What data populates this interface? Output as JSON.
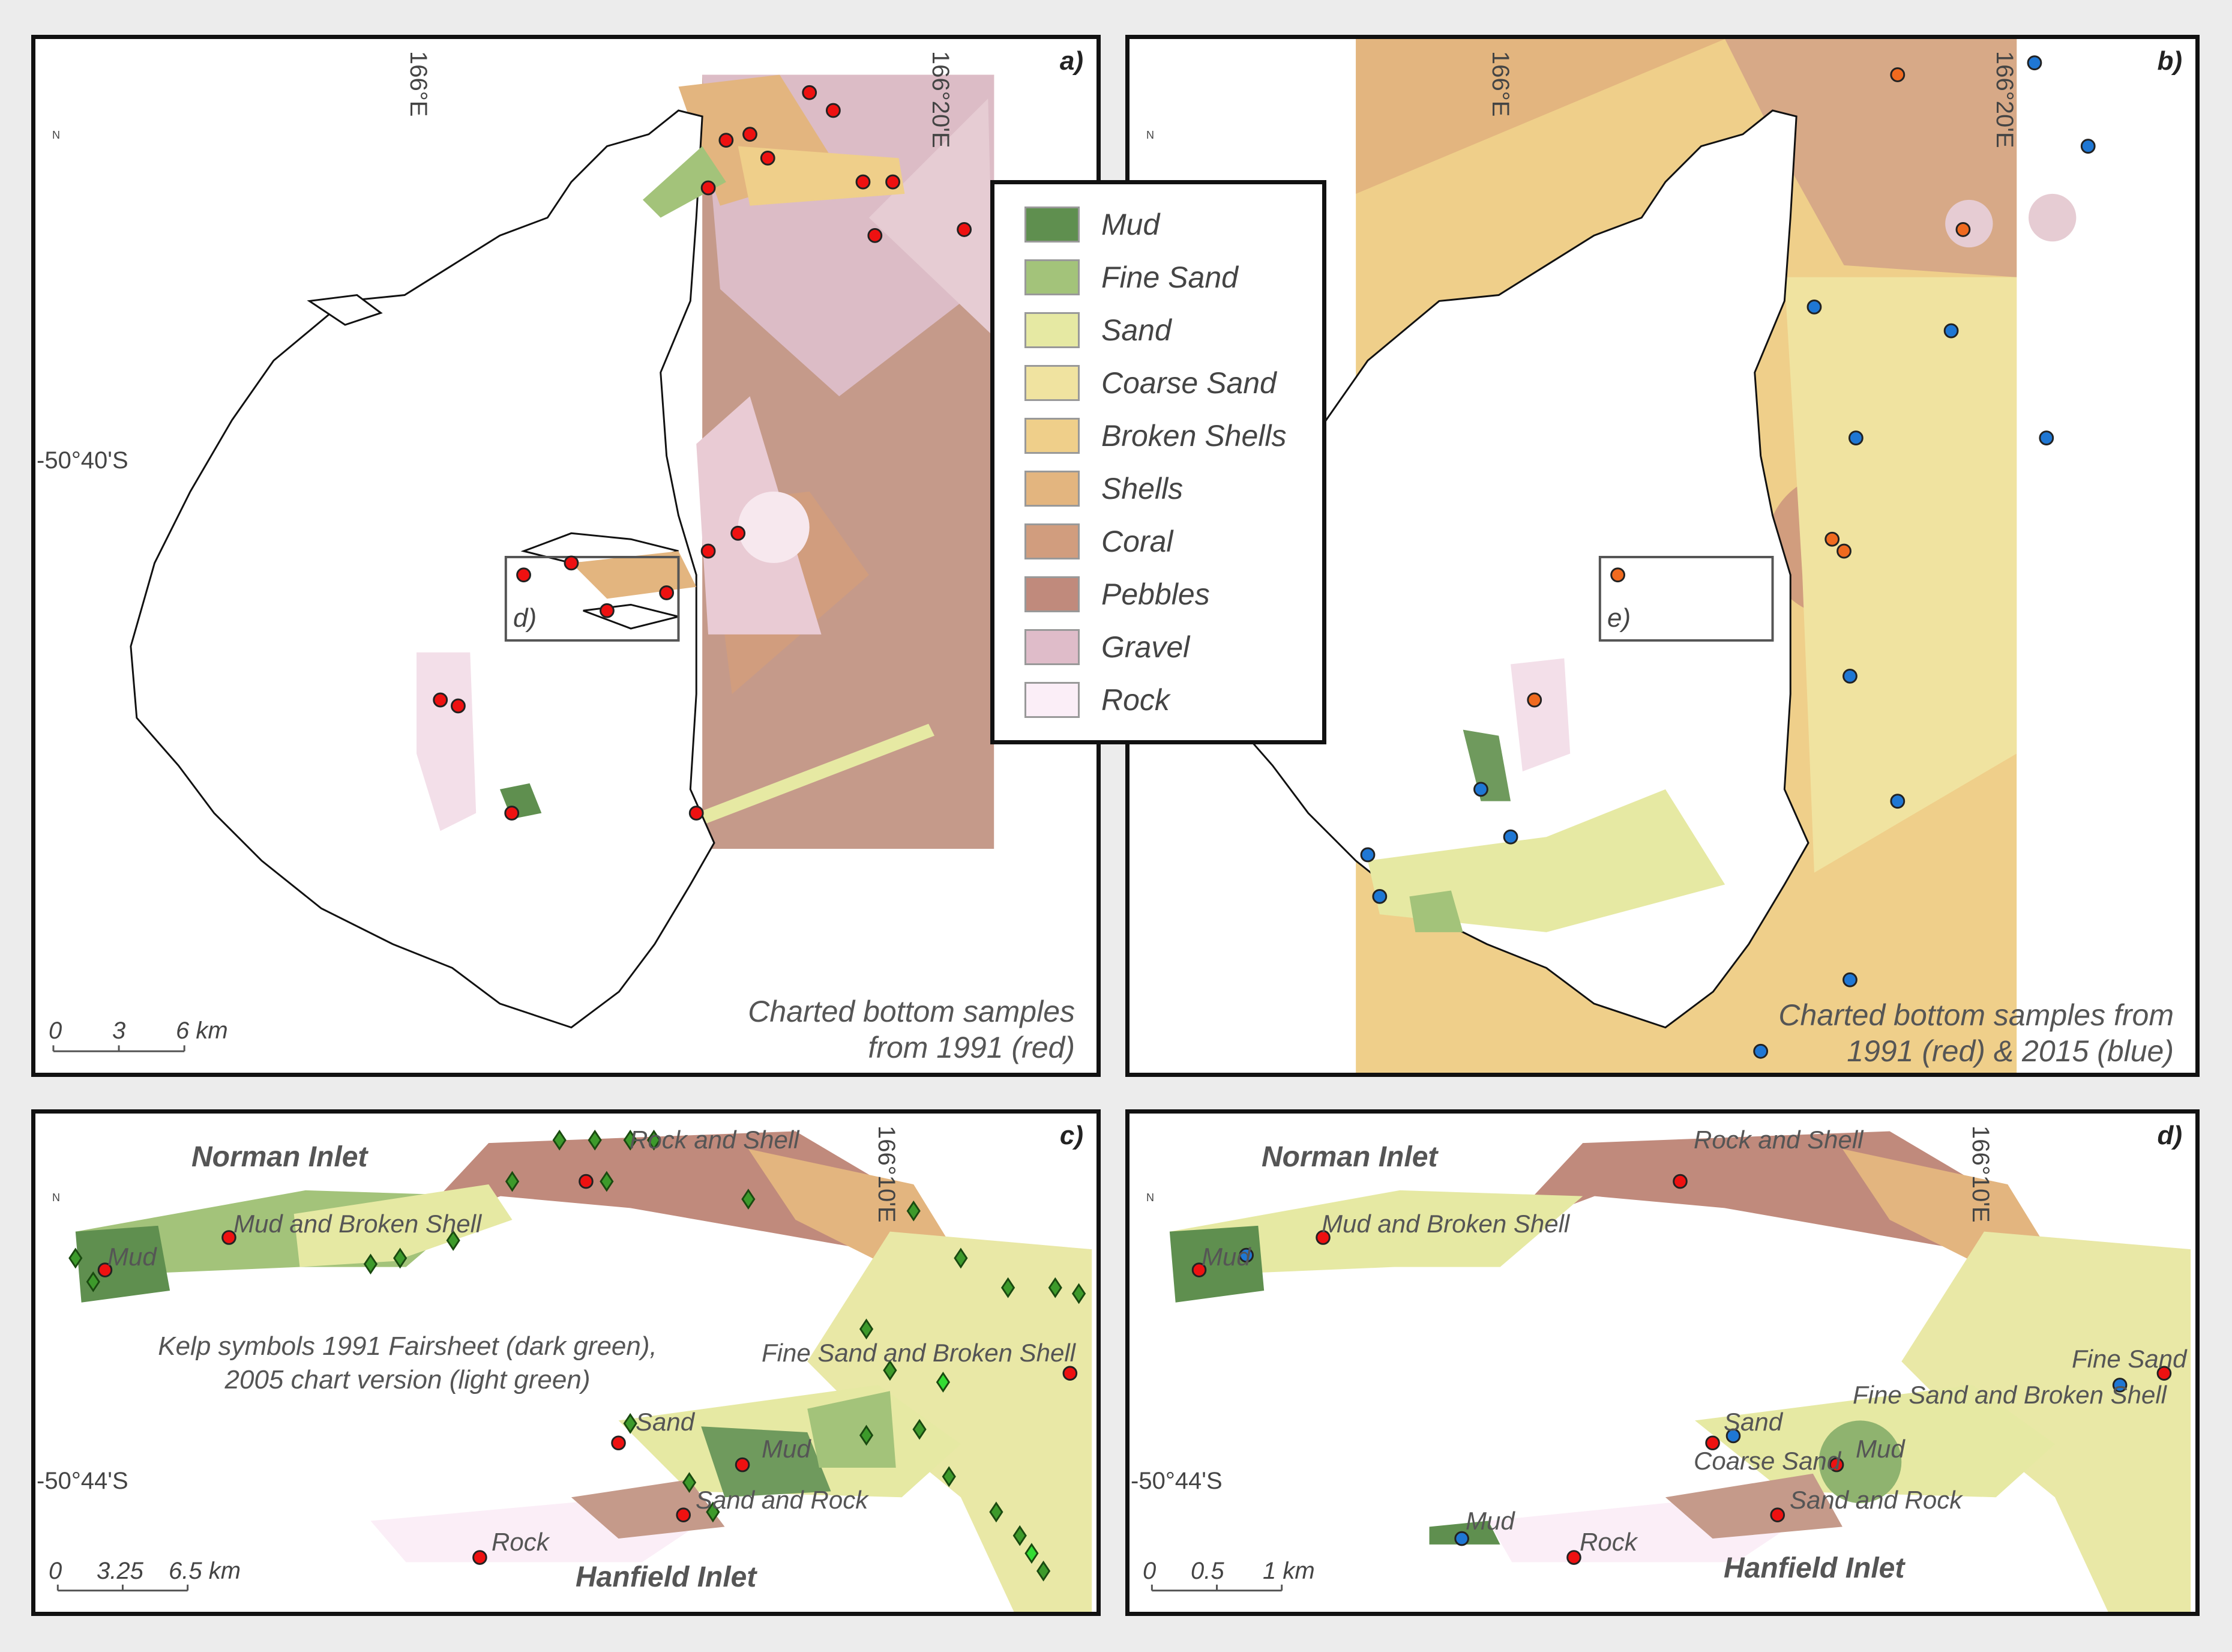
{
  "legend": {
    "items": [
      {
        "label": "Mud",
        "color": "#5f8f4f"
      },
      {
        "label": "Fine Sand",
        "color": "#a3c37a"
      },
      {
        "label": "Sand",
        "color": "#e6e9a3"
      },
      {
        "label": "Coarse Sand",
        "color": "#f0e3a0"
      },
      {
        "label": "Broken Shells",
        "color": "#efcf8a"
      },
      {
        "label": "Shells",
        "color": "#e3b57f"
      },
      {
        "label": "Coral",
        "color": "#d19d7e"
      },
      {
        "label": "Pebbles",
        "color": "#c08a7c"
      },
      {
        "label": "Gravel",
        "color": "#dfbcc9"
      },
      {
        "label": "Rock",
        "color": "#fbeef7"
      }
    ]
  },
  "panel_a": {
    "letter": "a)",
    "lon_label": "166°E",
    "lon_label_2": "166°20'E",
    "lat_label": "-50°40'S",
    "box_label": "d)",
    "caption_line1": "Charted bottom samples",
    "caption_line2": "from 1991 (red)",
    "scale_labels": [
      "0",
      "3",
      "6 km"
    ],
    "north": "N"
  },
  "panel_b": {
    "letter": "b)",
    "lon_label": "166°E",
    "lon_label_2": "166°20'E",
    "box_label": "e)",
    "caption_line1": "Charted bottom samples from",
    "caption_line2": "1991 (red) & 2015 (blue)",
    "north": "N"
  },
  "panel_c": {
    "letter": "c)",
    "lon_label": "166°10'E",
    "lat_label": "-50°44'S",
    "inlet_north": "Norman Inlet",
    "inlet_south": "Hanfield Inlet",
    "kelp_note_line1": "Kelp symbols 1991 Fairsheet (dark green),",
    "kelp_note_line2": "2005 chart version (light green)",
    "labels": [
      "Rock and Shell",
      "Mud and Broken Shell",
      "Mud",
      "Fine Sand and Broken Shell",
      "Sand",
      "Mud",
      "Sand and Rock",
      "Rock"
    ],
    "scale_labels": [
      "0",
      "3.25",
      "6.5 km"
    ],
    "north": "N"
  },
  "panel_d": {
    "letter": "d)",
    "lon_label": "166°10'E",
    "lat_label": "-50°44'S",
    "inlet_north": "Norman Inlet",
    "inlet_south": "Hanfield Inlet",
    "labels": [
      "Rock and Shell",
      "Mud and Broken Shell",
      "Mud",
      "Fine Sand",
      "Fine Sand and Broken Shell",
      "Sand",
      "Coarse Sand",
      "Mud",
      "Sand and Rock",
      "Mud",
      "Rock"
    ],
    "scale_labels": [
      "0",
      "0.5",
      "1 km"
    ],
    "north": "N"
  }
}
